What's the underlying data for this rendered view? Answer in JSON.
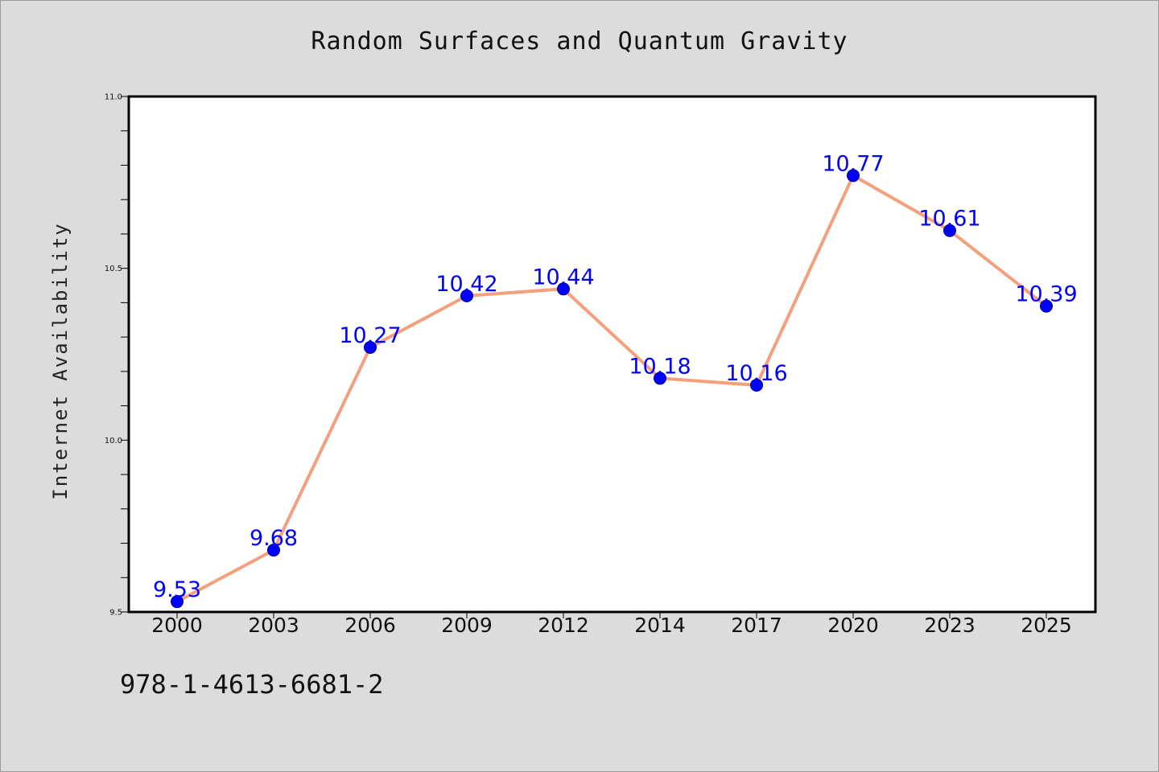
{
  "chart_data": {
    "type": "line",
    "title": "Random Surfaces and Quantum Gravity",
    "xlabel": "",
    "ylabel": "Internet Availability",
    "categories": [
      "2000",
      "2003",
      "2006",
      "2009",
      "2012",
      "2014",
      "2017",
      "2020",
      "2023",
      "2025"
    ],
    "series": [
      {
        "values": [
          9.53,
          9.68,
          10.27,
          10.42,
          10.44,
          10.18,
          10.16,
          10.77,
          10.61,
          10.39
        ]
      }
    ],
    "data_labels": [
      "9.53",
      "9.68",
      "10.27",
      "10.42",
      "10.44",
      "10.18",
      "10.16",
      "10.77",
      "10.61",
      "10.39"
    ],
    "ylim": [
      9.5,
      11.0
    ],
    "y_ticks": [
      "9.5",
      "10.0",
      "10.5",
      "11.0"
    ],
    "y_minor_step": 0.1,
    "grid": false,
    "colors": {
      "line": "#f4a07c",
      "marker": "#0000ff",
      "data_label": "#0000ff",
      "background": "#dcdcdc",
      "plot_background": "#ffffff"
    }
  },
  "footer": {
    "isbn": "978-1-4613-6681-2"
  }
}
